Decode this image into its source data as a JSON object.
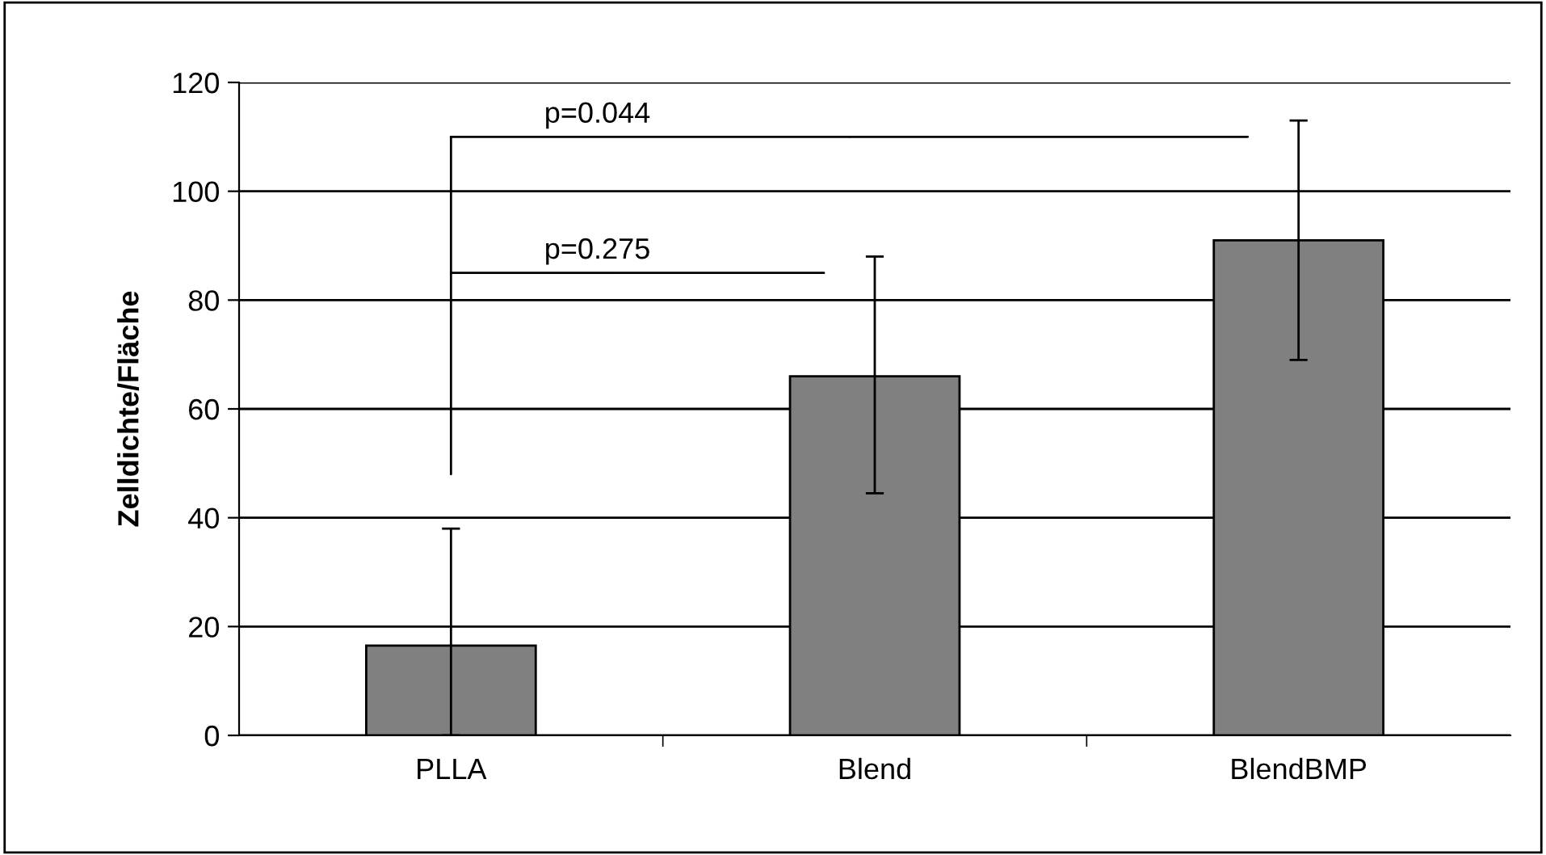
{
  "chart_data": {
    "type": "bar",
    "ylabel": "Zelldichte/Fläche",
    "categories": [
      "PLLA",
      "Blend",
      "BlendBMP"
    ],
    "values": [
      16.5,
      66,
      91
    ],
    "color": "#808080",
    "errors": [
      [
        0,
        38
      ],
      [
        44.5,
        88
      ],
      [
        69,
        113
      ]
    ],
    "ylim": [
      0,
      120
    ],
    "yticks": [
      0,
      20,
      40,
      60,
      80,
      100,
      120
    ],
    "grid": "y",
    "annotations": [
      "p=0.044",
      "p=0.275"
    ]
  }
}
